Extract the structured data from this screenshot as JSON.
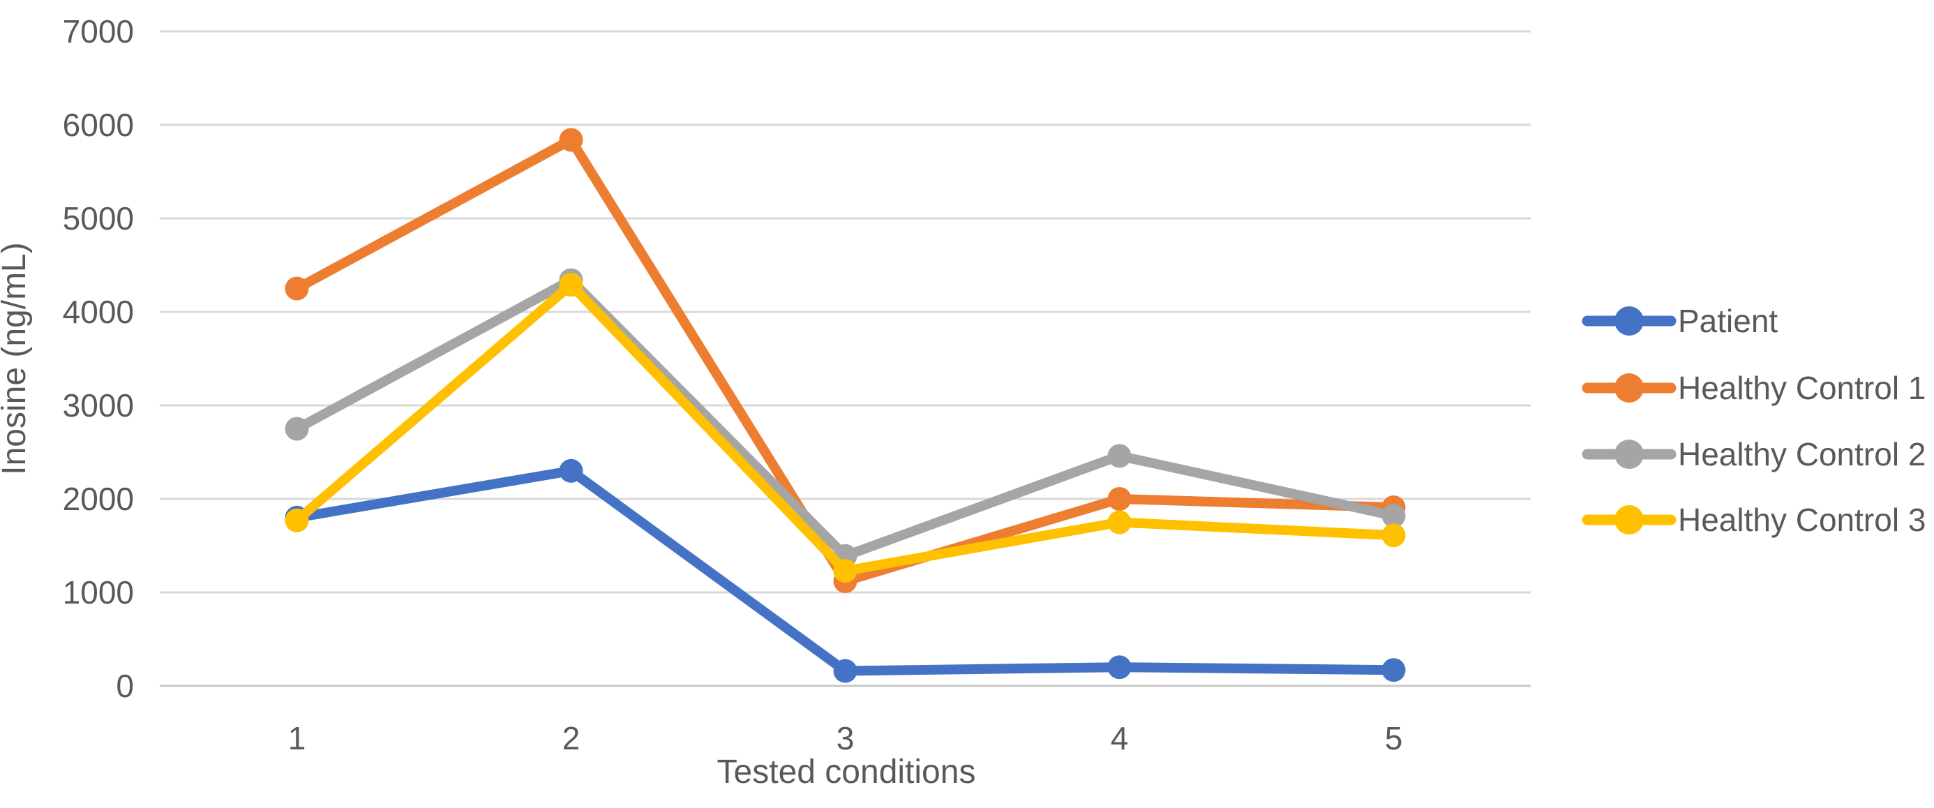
{
  "figure": {
    "background": "#FFFFFF"
  },
  "chart_data": {
    "type": "line",
    "title": "",
    "xlabel": "Tested conditions",
    "ylabel": "Inosine (ng/mL)",
    "categories": [
      "1",
      "2",
      "3",
      "4",
      "5"
    ],
    "series": [
      {
        "name": "Patient",
        "color": "#4472C4",
        "values": [
          1800,
          2300,
          160,
          200,
          170
        ]
      },
      {
        "name": "Healthy Control 1",
        "color": "#ED7D31",
        "values": [
          4250,
          5840,
          1120,
          2000,
          1910
        ]
      },
      {
        "name": "Healthy Control 2",
        "color": "#A5A5A5",
        "values": [
          2750,
          4340,
          1390,
          2460,
          1820
        ]
      },
      {
        "name": "Healthy Control 3",
        "color": "#FFC000",
        "values": [
          1770,
          4290,
          1230,
          1750,
          1610
        ]
      }
    ],
    "ylim": [
      0,
      7000
    ],
    "yticks": [
      0,
      1000,
      2000,
      3000,
      4000,
      5000,
      6000,
      7000
    ],
    "grid": true,
    "legend_position": "right",
    "marker": "circle"
  },
  "styles": {
    "grid_color": "#D9D9D9",
    "axis_line_color": "#C9C9C9",
    "text_color": "#595959"
  }
}
